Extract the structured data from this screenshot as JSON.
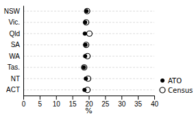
{
  "chart_data": {
    "type": "dot",
    "orientation": "horizontal",
    "categories": [
      "NSW",
      "Vic.",
      "Qld",
      "SA",
      "WA",
      "Tas.",
      "NT",
      "ACT"
    ],
    "series": [
      {
        "name": "ATO",
        "color": "#000000",
        "marker": "circle",
        "values": [
          19.3,
          18.9,
          18.8,
          19.0,
          18.9,
          18.5,
          19.1,
          18.7
        ]
      },
      {
        "name": "Census",
        "color": "#000000",
        "marker": "open-circle",
        "values": [
          19.5,
          19.2,
          20.2,
          19.2,
          19.6,
          18.6,
          19.8,
          19.6
        ]
      }
    ],
    "xlabel": "%",
    "xlim": [
      0,
      40
    ],
    "xticks": [
      0,
      5,
      10,
      15,
      20,
      25,
      30,
      35,
      40
    ],
    "grid": true,
    "legend": "lower right"
  }
}
